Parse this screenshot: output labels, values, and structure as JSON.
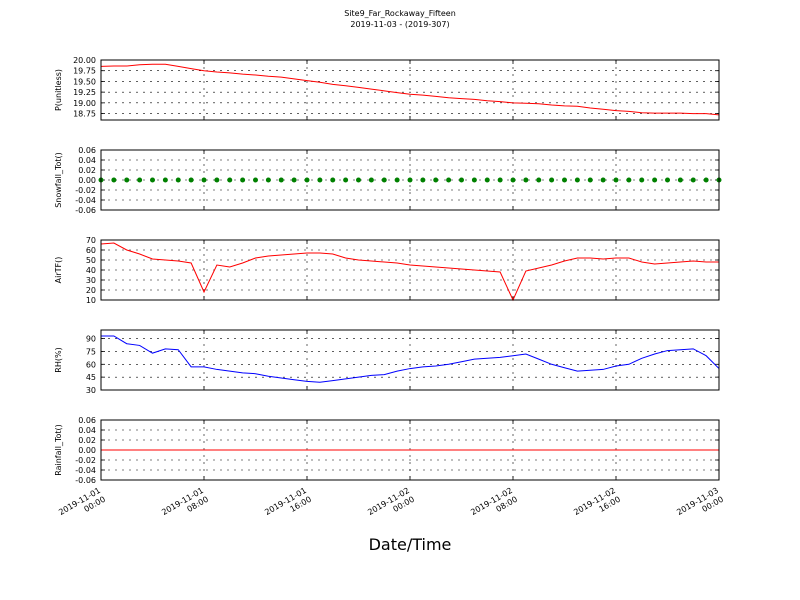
{
  "title": "Site9_Far_Rockaway_Fifteen",
  "subtitle": "2019-11-03 - (2019-307)",
  "x_axis": {
    "label": "Date/Time",
    "x": [
      "2019-11-01 00:00",
      "2019-11-01 01:00",
      "2019-11-01 02:00",
      "2019-11-01 03:00",
      "2019-11-01 04:00",
      "2019-11-01 05:00",
      "2019-11-01 06:00",
      "2019-11-01 07:00",
      "2019-11-01 08:00",
      "2019-11-01 09:00",
      "2019-11-01 10:00",
      "2019-11-01 11:00",
      "2019-11-01 12:00",
      "2019-11-01 13:00",
      "2019-11-01 14:00",
      "2019-11-01 15:00",
      "2019-11-01 16:00",
      "2019-11-01 17:00",
      "2019-11-01 18:00",
      "2019-11-01 19:00",
      "2019-11-01 20:00",
      "2019-11-01 21:00",
      "2019-11-01 22:00",
      "2019-11-01 23:00",
      "2019-11-02 00:00",
      "2019-11-02 01:00",
      "2019-11-02 02:00",
      "2019-11-02 03:00",
      "2019-11-02 04:00",
      "2019-11-02 05:00",
      "2019-11-02 06:00",
      "2019-11-02 07:00",
      "2019-11-02 08:00",
      "2019-11-02 09:00",
      "2019-11-02 10:00",
      "2019-11-02 11:00",
      "2019-11-02 12:00",
      "2019-11-02 13:00",
      "2019-11-02 14:00",
      "2019-11-02 15:00",
      "2019-11-02 16:00",
      "2019-11-02 17:00",
      "2019-11-02 18:00",
      "2019-11-02 19:00",
      "2019-11-02 20:00",
      "2019-11-02 21:00",
      "2019-11-02 22:00",
      "2019-11-02 23:00",
      "2019-11-03 00:00"
    ],
    "xlim": [
      "2019-11-01 00:00",
      "2019-11-03 00:00"
    ],
    "xticks": [
      "2019-11-01 00:00",
      "2019-11-01 08:00",
      "2019-11-01 16:00",
      "2019-11-02 00:00",
      "2019-11-02 08:00",
      "2019-11-02 16:00",
      "2019-11-03 00:00"
    ]
  },
  "chart_data": [
    {
      "type": "line",
      "ylabel": "P(unitless)",
      "ylim": [
        18.6,
        20.0
      ],
      "grid": true,
      "yticks": [
        {
          "value": 18.75,
          "label": "18.75"
        },
        {
          "value": 19.0,
          "label": "19.00"
        },
        {
          "value": 19.25,
          "label": "19.25"
        },
        {
          "value": 19.5,
          "label": "19.50"
        },
        {
          "value": 19.75,
          "label": "19.75"
        },
        {
          "value": 20.0,
          "label": "20.00"
        }
      ],
      "series": [
        {
          "color": "#ff0000",
          "values": [
            19.85,
            19.86,
            19.86,
            19.89,
            19.9,
            19.9,
            19.85,
            19.8,
            19.75,
            19.72,
            19.7,
            19.67,
            19.65,
            19.62,
            19.6,
            19.56,
            19.52,
            19.48,
            19.43,
            19.4,
            19.36,
            19.32,
            19.28,
            19.24,
            19.2,
            19.18,
            19.15,
            19.12,
            19.1,
            19.08,
            19.05,
            19.03,
            19.0,
            18.99,
            18.98,
            18.95,
            18.93,
            18.92,
            18.88,
            18.85,
            18.82,
            18.8,
            18.77,
            18.76,
            18.76,
            18.76,
            18.75,
            18.75,
            18.72
          ]
        }
      ]
    },
    {
      "type": "scatter",
      "ylabel": "Snowfall_Tot()",
      "ylim": [
        -0.06,
        0.06
      ],
      "grid": true,
      "yticks": [
        -0.06,
        -0.04,
        -0.02,
        {
          "value": 0,
          "label": "0.00"
        },
        0.02,
        0.04,
        0.06
      ],
      "series": [
        {
          "color": "#008000",
          "values": [
            0,
            0,
            0,
            0,
            0,
            0,
            0,
            0,
            0,
            0,
            0,
            0,
            0,
            0,
            0,
            0,
            0,
            0,
            0,
            0,
            0,
            0,
            0,
            0,
            0,
            0,
            0,
            0,
            0,
            0,
            0,
            0,
            0,
            0,
            0,
            0,
            0,
            0,
            0,
            0,
            0,
            0,
            0,
            0,
            0,
            0,
            0,
            0,
            0
          ]
        }
      ]
    },
    {
      "type": "line",
      "ylabel": "AirTF()",
      "ylim": [
        10,
        70
      ],
      "grid": true,
      "yticks": [
        10,
        20,
        30,
        40,
        50,
        60,
        70
      ],
      "series": [
        {
          "color": "#ff0000",
          "values": [
            66,
            67,
            60,
            56,
            51,
            50,
            49,
            47,
            18,
            45,
            43,
            47,
            52,
            54,
            55,
            56,
            57,
            57,
            56,
            52,
            50,
            49,
            48,
            47,
            45,
            44,
            43,
            42,
            41,
            40,
            39,
            38,
            10,
            39,
            42,
            45,
            49,
            52,
            52,
            51,
            52,
            52,
            48,
            46,
            47,
            48,
            49,
            48,
            48
          ]
        }
      ]
    },
    {
      "type": "line",
      "ylabel": "RH(%)",
      "ylim": [
        30,
        100
      ],
      "grid": true,
      "yticks": [
        30,
        45,
        60,
        75,
        90
      ],
      "series": [
        {
          "color": "#0000ff",
          "values": [
            93,
            93,
            84,
            82,
            73,
            78,
            77,
            57,
            57,
            54,
            52,
            50,
            49,
            46,
            44,
            42,
            40,
            39,
            41,
            43,
            45,
            47,
            48,
            52,
            55,
            57,
            58,
            60,
            63,
            66,
            67,
            68,
            70,
            72,
            66,
            60,
            56,
            52,
            53,
            54,
            58,
            60,
            67,
            72,
            76,
            77,
            78,
            70,
            55
          ]
        }
      ]
    },
    {
      "type": "line",
      "ylabel": "Rainfall_Tot()",
      "ylim": [
        -0.06,
        0.06
      ],
      "grid": true,
      "yticks": [
        -0.06,
        -0.04,
        -0.02,
        {
          "value": 0,
          "label": "0.00"
        },
        0.02,
        0.04,
        0.06
      ],
      "series": [
        {
          "color": "#ff0000",
          "values": [
            0,
            0,
            0,
            0,
            0,
            0,
            0,
            0,
            0,
            0,
            0,
            0,
            0,
            0,
            0,
            0,
            0,
            0,
            0,
            0,
            0,
            0,
            0,
            0,
            0,
            0,
            0,
            0,
            0,
            0,
            0,
            0,
            0,
            0,
            0,
            0,
            0,
            0,
            0,
            0,
            0,
            0,
            0,
            0,
            0,
            0,
            0,
            0,
            0
          ]
        }
      ]
    }
  ]
}
